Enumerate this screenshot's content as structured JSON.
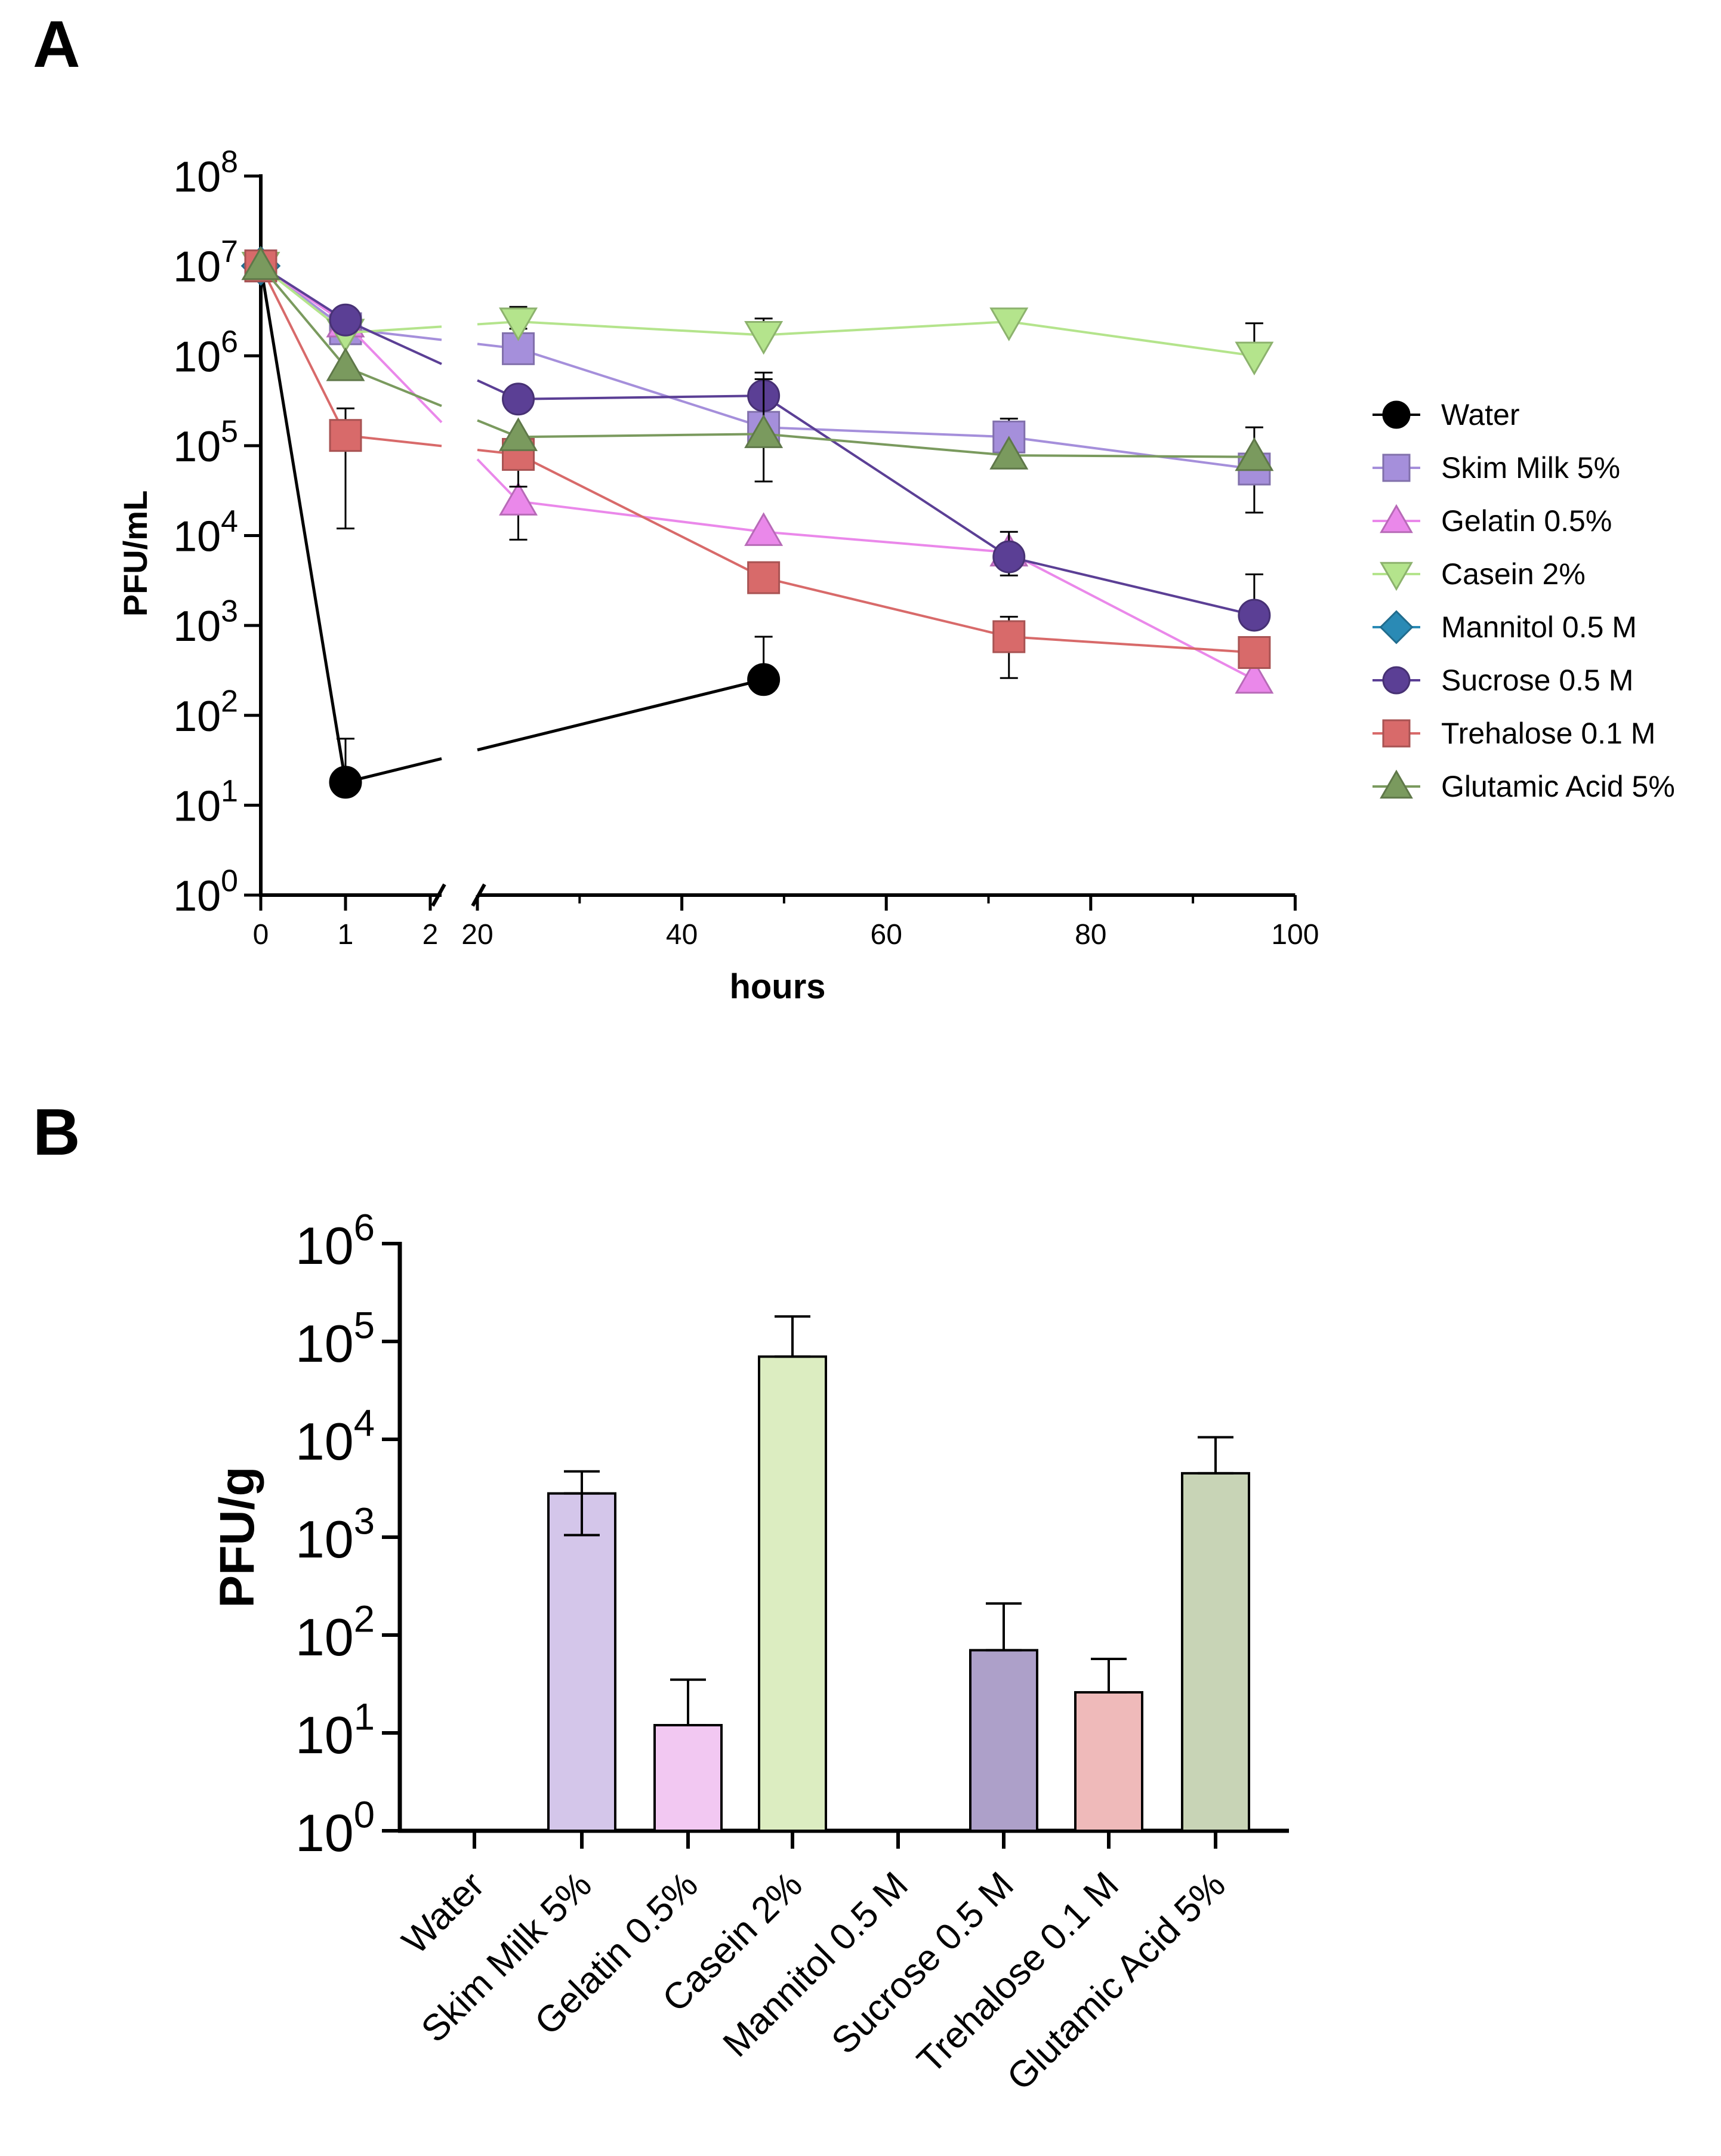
{
  "chart_data": [
    {
      "panel_label": "A",
      "type": "line",
      "xlabel": "hours",
      "ylabel": "PFU/mL",
      "y_scale": "log",
      "ylim": [
        1,
        100000000
      ],
      "y_ticks": [
        {
          "base": "10",
          "exp": "0"
        },
        {
          "base": "10",
          "exp": "1"
        },
        {
          "base": "10",
          "exp": "2"
        },
        {
          "base": "10",
          "exp": "3"
        },
        {
          "base": "10",
          "exp": "4"
        },
        {
          "base": "10",
          "exp": "5"
        },
        {
          "base": "10",
          "exp": "6"
        },
        {
          "base": "10",
          "exp": "7"
        },
        {
          "base": "10",
          "exp": "8"
        }
      ],
      "x_axis_broken": true,
      "x_segment_1": {
        "range": [
          0,
          2
        ],
        "tick_labels": [
          "0",
          "1",
          "2"
        ]
      },
      "x_segment_2": {
        "range": [
          20,
          100
        ],
        "tick_labels": [
          "20",
          "40",
          "60",
          "80",
          "100"
        ]
      },
      "legend_position": "right",
      "series": [
        {
          "name": "Water",
          "color": "#000000",
          "marker": "circle",
          "points": [
            [
              0,
              10000000
            ],
            [
              1,
              18
            ],
            [
              48,
              250
            ]
          ],
          "error_upper": [
            null,
            55,
            750
          ]
        },
        {
          "name": "Skim Milk 5%",
          "color": "#a58fdb",
          "marker": "square",
          "points": [
            [
              0,
              10000000
            ],
            [
              1,
              2000000
            ],
            [
              24,
              1200000
            ],
            [
              48,
              160000
            ],
            [
              72,
              125000
            ],
            [
              96,
              55000
            ]
          ],
          "error_upper": [
            null,
            3200000,
            2000000,
            450000,
            200000,
            160000
          ],
          "error_lower": [
            null,
            null,
            null,
            40000,
            null,
            18000
          ]
        },
        {
          "name": "Gelatin 0.5%",
          "color": "#ea88ea",
          "marker": "triangle-up",
          "points": [
            [
              0,
              10000000
            ],
            [
              1,
              2300000
            ],
            [
              24,
              24000
            ],
            [
              48,
              11000
            ],
            [
              72,
              6500
            ],
            [
              96,
              250
            ]
          ],
          "error_lower": [
            null,
            null,
            9000,
            null,
            null,
            null
          ]
        },
        {
          "name": "Casein 2%",
          "color": "#b4e48c",
          "marker": "triangle-down",
          "points": [
            [
              0,
              10000000
            ],
            [
              1,
              1800000
            ],
            [
              24,
              2400000
            ],
            [
              48,
              1700000
            ],
            [
              72,
              2400000
            ],
            [
              96,
              1000000
            ]
          ],
          "error_upper": [
            null,
            null,
            3500000,
            2600000,
            null,
            2300000
          ]
        },
        {
          "name": "Mannitol 0.5 M",
          "color": "#2a8ab5",
          "marker": "diamond",
          "points": [
            [
              0,
              10000000
            ]
          ]
        },
        {
          "name": "Sucrose 0.5 M",
          "color": "#5b3f95",
          "marker": "circle",
          "points": [
            [
              0,
              10000000
            ],
            [
              1,
              2500000
            ],
            [
              24,
              330000
            ],
            [
              48,
              360000
            ],
            [
              72,
              5800
            ],
            [
              96,
              1300
            ]
          ],
          "error_upper": [
            null,
            null,
            null,
            650000,
            11000,
            3700
          ],
          "error_lower": [
            null,
            null,
            null,
            null,
            3600,
            null
          ]
        },
        {
          "name": "Trehalose 0.1 M",
          "color": "#d86a6a",
          "marker": "square",
          "points": [
            [
              0,
              10000000
            ],
            [
              1,
              130000
            ],
            [
              24,
              80000
            ],
            [
              48,
              3400
            ],
            [
              72,
              750
            ],
            [
              96,
              500
            ]
          ],
          "error_upper": [
            null,
            260000,
            null,
            null,
            1250,
            null
          ],
          "error_lower": [
            null,
            12000,
            35000,
            null,
            260,
            null
          ]
        },
        {
          "name": "Glutamic Acid 5%",
          "color": "#7a9a5e",
          "marker": "triangle-up",
          "points": [
            [
              0,
              10000000
            ],
            [
              1,
              750000
            ],
            [
              24,
              125000
            ],
            [
              48,
              135000
            ],
            [
              72,
              78000
            ],
            [
              96,
              75000
            ]
          ],
          "error_upper": [
            null,
            null,
            null,
            550000,
            null,
            null
          ]
        }
      ]
    },
    {
      "panel_label": "B",
      "type": "bar",
      "xlabel": "",
      "ylabel": "PFU/g",
      "y_scale": "log",
      "ylim": [
        1,
        1000000
      ],
      "y_ticks": [
        {
          "base": "10",
          "exp": "0"
        },
        {
          "base": "10",
          "exp": "1"
        },
        {
          "base": "10",
          "exp": "2"
        },
        {
          "base": "10",
          "exp": "3"
        },
        {
          "base": "10",
          "exp": "4"
        },
        {
          "base": "10",
          "exp": "5"
        },
        {
          "base": "10",
          "exp": "6"
        }
      ],
      "categories": [
        "Water",
        "Skim Milk 5%",
        "Gelatin 0.5%",
        "Casein 2%",
        "Mannitol 0.5 M",
        "Sucrose 0.5 M",
        "Trehalose 0.1 M",
        "Glutamic Acid 5%"
      ],
      "values": [
        null,
        2800,
        12,
        70000,
        null,
        70,
        26,
        4500
      ],
      "error_upper": [
        null,
        4700,
        35,
        180000,
        null,
        210,
        57,
        10500
      ],
      "error_lower": [
        null,
        1050,
        null,
        null,
        null,
        null,
        null,
        null
      ],
      "colors": [
        "#ffffff",
        "#d4c6ea",
        "#f2c8f2",
        "#dcedc1",
        "#ffffff",
        "#ada0c9",
        "#efbaba",
        "#c8d4b6"
      ]
    }
  ]
}
